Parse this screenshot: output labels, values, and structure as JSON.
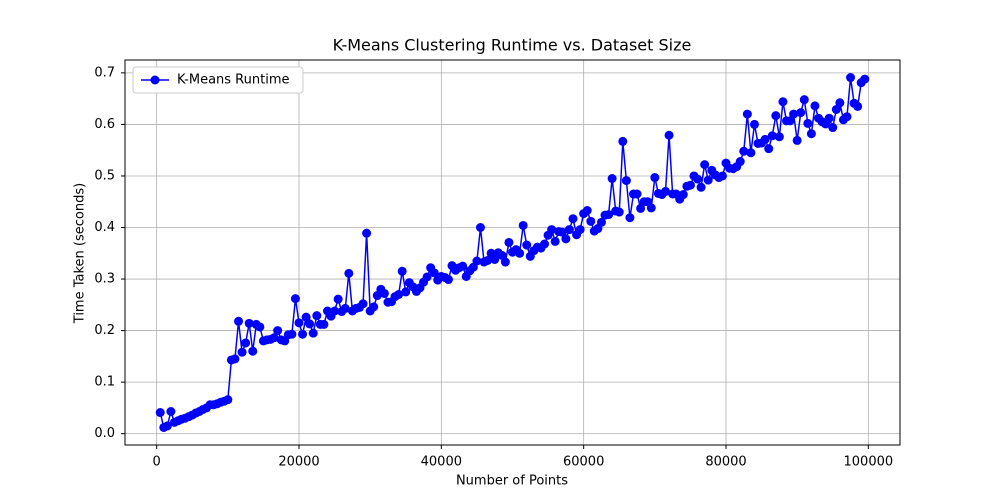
{
  "chart_data": {
    "type": "line",
    "title": "K-Means Clustering Runtime vs. Dataset Size",
    "xlabel": "Number of Points",
    "ylabel": "Time Taken (seconds)",
    "x": [
      500,
      1000,
      1500,
      2000,
      2500,
      3000,
      3500,
      4000,
      4500,
      5000,
      5500,
      6000,
      6500,
      7000,
      7500,
      8000,
      8500,
      9000,
      9500,
      10000,
      10500,
      11000,
      11500,
      12000,
      12500,
      13000,
      13500,
      14000,
      14500,
      15000,
      15500,
      16000,
      16500,
      17000,
      17500,
      18000,
      18500,
      19000,
      19500,
      20000,
      20500,
      21000,
      21500,
      22000,
      22500,
      23000,
      23500,
      24000,
      24500,
      25000,
      25500,
      26000,
      26500,
      27000,
      27500,
      28000,
      28500,
      29000,
      29500,
      30000,
      30500,
      31000,
      31500,
      32000,
      32500,
      33000,
      33500,
      34000,
      34500,
      35000,
      35500,
      36000,
      36500,
      37000,
      37500,
      38000,
      38500,
      39000,
      39500,
      40000,
      40500,
      41000,
      41500,
      42000,
      42500,
      43000,
      43500,
      44000,
      44500,
      45000,
      45500,
      46000,
      46500,
      47000,
      47500,
      48000,
      48500,
      49000,
      49500,
      50000,
      50500,
      51000,
      51500,
      52000,
      52500,
      53000,
      53500,
      54000,
      54500,
      55000,
      55500,
      56000,
      56500,
      57000,
      57500,
      58000,
      58500,
      59000,
      59500,
      60000,
      60500,
      61000,
      61500,
      62000,
      62500,
      63000,
      63500,
      64000,
      64500,
      65000,
      65500,
      66000,
      66500,
      67000,
      67500,
      68000,
      68500,
      69000,
      69500,
      70000,
      70500,
      71000,
      71500,
      72000,
      72500,
      73000,
      73500,
      74000,
      74500,
      75000,
      75500,
      76000,
      76500,
      77000,
      77500,
      78000,
      78500,
      79000,
      79500,
      80000,
      80500,
      81000,
      81500,
      82000,
      82500,
      83000,
      83500,
      84000,
      84500,
      85000,
      85500,
      86000,
      86500,
      87000,
      87500,
      88000,
      88500,
      89000,
      89500,
      90000,
      90500,
      91000,
      91500,
      92000,
      92500,
      93000,
      93500,
      94000,
      94500,
      95000,
      95500,
      96000,
      96500,
      97000,
      97500,
      98000,
      98500,
      99000,
      99500
    ],
    "series": [
      {
        "name": "K-Means Runtime",
        "color": "#0000ff",
        "values": [
          0.041,
          0.012,
          0.015,
          0.043,
          0.022,
          0.025,
          0.028,
          0.03,
          0.033,
          0.036,
          0.04,
          0.043,
          0.047,
          0.05,
          0.056,
          0.056,
          0.058,
          0.061,
          0.063,
          0.066,
          0.143,
          0.145,
          0.218,
          0.158,
          0.176,
          0.214,
          0.16,
          0.212,
          0.207,
          0.18,
          0.182,
          0.183,
          0.186,
          0.2,
          0.182,
          0.18,
          0.192,
          0.193,
          0.262,
          0.215,
          0.193,
          0.226,
          0.213,
          0.195,
          0.229,
          0.212,
          0.212,
          0.238,
          0.228,
          0.238,
          0.261,
          0.237,
          0.243,
          0.311,
          0.238,
          0.243,
          0.245,
          0.252,
          0.389,
          0.238,
          0.246,
          0.268,
          0.28,
          0.272,
          0.255,
          0.256,
          0.266,
          0.27,
          0.315,
          0.275,
          0.293,
          0.285,
          0.276,
          0.283,
          0.294,
          0.304,
          0.322,
          0.312,
          0.298,
          0.305,
          0.303,
          0.299,
          0.326,
          0.317,
          0.322,
          0.325,
          0.305,
          0.316,
          0.323,
          0.335,
          0.4,
          0.333,
          0.336,
          0.35,
          0.338,
          0.351,
          0.346,
          0.333,
          0.371,
          0.352,
          0.357,
          0.35,
          0.404,
          0.366,
          0.344,
          0.355,
          0.362,
          0.36,
          0.368,
          0.385,
          0.396,
          0.373,
          0.392,
          0.391,
          0.378,
          0.396,
          0.417,
          0.386,
          0.396,
          0.427,
          0.433,
          0.412,
          0.393,
          0.398,
          0.41,
          0.424,
          0.425,
          0.495,
          0.432,
          0.43,
          0.567,
          0.491,
          0.419,
          0.465,
          0.465,
          0.437,
          0.45,
          0.45,
          0.438,
          0.497,
          0.466,
          0.464,
          0.47,
          0.579,
          0.465,
          0.465,
          0.455,
          0.464,
          0.48,
          0.482,
          0.5,
          0.494,
          0.478,
          0.522,
          0.492,
          0.511,
          0.502,
          0.497,
          0.5,
          0.525,
          0.515,
          0.514,
          0.518,
          0.528,
          0.548,
          0.62,
          0.545,
          0.6,
          0.563,
          0.564,
          0.571,
          0.553,
          0.578,
          0.617,
          0.576,
          0.644,
          0.607,
          0.607,
          0.62,
          0.569,
          0.623,
          0.648,
          0.602,
          0.582,
          0.636,
          0.612,
          0.605,
          0.601,
          0.612,
          0.594,
          0.629,
          0.642,
          0.609,
          0.615,
          0.691,
          0.641,
          0.635,
          0.681,
          0.688
        ]
      }
    ],
    "xlim": [
      -4450,
      104450
    ],
    "ylim": [
      -0.022,
      0.725
    ],
    "xticks": [
      0,
      20000,
      40000,
      60000,
      80000,
      100000
    ],
    "yticks": [
      {
        "value": 0,
        "label": "0.0"
      },
      0.1,
      0.2,
      0.3,
      0.4,
      0.5,
      0.6,
      0.7
    ],
    "grid": true,
    "legend": "upper left",
    "markers": true
  }
}
